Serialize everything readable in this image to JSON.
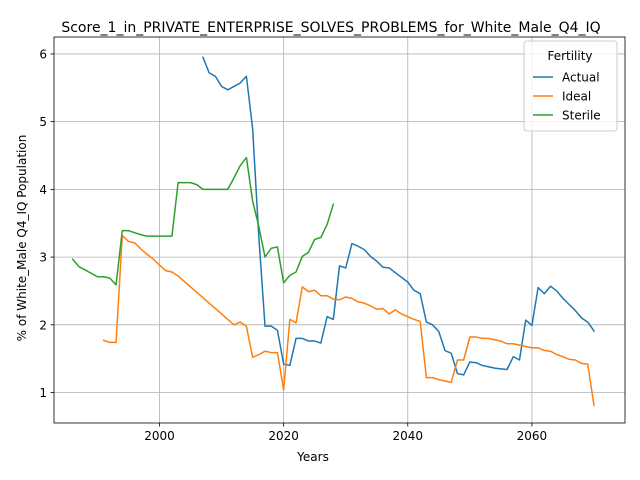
{
  "chart_data": {
    "type": "line",
    "title": "Score_1_in_PRIVATE_ENTERPRISE_SOLVES_PROBLEMS_for_White_Male_Q4_IQ",
    "xlabel": "Years",
    "ylabel": "% of White_Male Q4_IQ Population",
    "xlim": [
      1983,
      2075
    ],
    "ylim": [
      0.55,
      6.25
    ],
    "xticks": [
      2000,
      2020,
      2040,
      2060
    ],
    "yticks": [
      1,
      2,
      3,
      4,
      5,
      6
    ],
    "grid": true,
    "legend": {
      "title": "Fertility",
      "placement": "top-right"
    },
    "series": [
      {
        "name": "Actual",
        "color": "#1f77b4",
        "points": [
          [
            2007,
            5.95
          ],
          [
            2008,
            5.72
          ],
          [
            2009,
            5.67
          ],
          [
            2010,
            5.52
          ],
          [
            2011,
            5.47
          ],
          [
            2012,
            5.52
          ],
          [
            2013,
            5.57
          ],
          [
            2014,
            5.67
          ],
          [
            2015,
            4.9
          ],
          [
            2016,
            3.3
          ],
          [
            2017,
            1.98
          ],
          [
            2018,
            1.98
          ],
          [
            2019,
            1.92
          ],
          [
            2020,
            1.42
          ],
          [
            2021,
            1.4
          ],
          [
            2022,
            1.8
          ],
          [
            2023,
            1.8
          ],
          [
            2024,
            1.76
          ],
          [
            2025,
            1.76
          ],
          [
            2026,
            1.73
          ],
          [
            2027,
            2.12
          ],
          [
            2028,
            2.08
          ],
          [
            2029,
            2.87
          ],
          [
            2030,
            2.84
          ],
          [
            2031,
            3.2
          ],
          [
            2032,
            3.16
          ],
          [
            2033,
            3.11
          ],
          [
            2034,
            3.01
          ],
          [
            2035,
            2.94
          ],
          [
            2036,
            2.85
          ],
          [
            2037,
            2.84
          ],
          [
            2038,
            2.77
          ],
          [
            2039,
            2.7
          ],
          [
            2040,
            2.63
          ],
          [
            2041,
            2.51
          ],
          [
            2042,
            2.46
          ],
          [
            2043,
            2.04
          ],
          [
            2044,
            2.0
          ],
          [
            2045,
            1.9
          ],
          [
            2046,
            1.62
          ],
          [
            2047,
            1.58
          ],
          [
            2048,
            1.28
          ],
          [
            2049,
            1.26
          ],
          [
            2050,
            1.45
          ],
          [
            2051,
            1.44
          ],
          [
            2052,
            1.4
          ],
          [
            2053,
            1.38
          ],
          [
            2054,
            1.36
          ],
          [
            2055,
            1.35
          ],
          [
            2056,
            1.34
          ],
          [
            2057,
            1.53
          ],
          [
            2058,
            1.48
          ],
          [
            2059,
            2.07
          ],
          [
            2060,
            1.99
          ],
          [
            2061,
            2.55
          ],
          [
            2062,
            2.46
          ],
          [
            2063,
            2.57
          ],
          [
            2064,
            2.5
          ],
          [
            2065,
            2.39
          ],
          [
            2066,
            2.3
          ],
          [
            2067,
            2.21
          ],
          [
            2068,
            2.1
          ],
          [
            2069,
            2.04
          ],
          [
            2070,
            1.91
          ]
        ]
      },
      {
        "name": "Ideal",
        "color": "#ff7f0e",
        "points": [
          [
            1991,
            1.77
          ],
          [
            1992,
            1.74
          ],
          [
            1993,
            1.74
          ],
          [
            1994,
            3.32
          ],
          [
            1995,
            3.23
          ],
          [
            1996,
            3.21
          ],
          [
            1997,
            3.12
          ],
          [
            1998,
            3.04
          ],
          [
            1999,
            2.97
          ],
          [
            2000,
            2.88
          ],
          [
            2001,
            2.8
          ],
          [
            2002,
            2.78
          ],
          [
            2003,
            2.72
          ],
          [
            2004,
            2.64
          ],
          [
            2005,
            2.56
          ],
          [
            2006,
            2.48
          ],
          [
            2007,
            2.4
          ],
          [
            2008,
            2.32
          ],
          [
            2009,
            2.24
          ],
          [
            2010,
            2.16
          ],
          [
            2011,
            2.08
          ],
          [
            2012,
            2.0
          ],
          [
            2013,
            2.04
          ],
          [
            2014,
            1.98
          ],
          [
            2015,
            1.52
          ],
          [
            2016,
            1.56
          ],
          [
            2017,
            1.61
          ],
          [
            2018,
            1.59
          ],
          [
            2019,
            1.59
          ],
          [
            2020,
            1.04
          ],
          [
            2021,
            2.08
          ],
          [
            2022,
            2.03
          ],
          [
            2023,
            2.56
          ],
          [
            2024,
            2.49
          ],
          [
            2025,
            2.51
          ],
          [
            2026,
            2.43
          ],
          [
            2027,
            2.43
          ],
          [
            2028,
            2.38
          ],
          [
            2029,
            2.37
          ],
          [
            2030,
            2.41
          ],
          [
            2031,
            2.39
          ],
          [
            2032,
            2.34
          ],
          [
            2033,
            2.32
          ],
          [
            2034,
            2.28
          ],
          [
            2035,
            2.23
          ],
          [
            2036,
            2.24
          ],
          [
            2037,
            2.16
          ],
          [
            2038,
            2.22
          ],
          [
            2039,
            2.16
          ],
          [
            2040,
            2.12
          ],
          [
            2041,
            2.08
          ],
          [
            2042,
            2.05
          ],
          [
            2043,
            1.22
          ],
          [
            2044,
            1.22
          ],
          [
            2045,
            1.19
          ],
          [
            2046,
            1.17
          ],
          [
            2047,
            1.15
          ],
          [
            2048,
            1.48
          ],
          [
            2049,
            1.48
          ],
          [
            2050,
            1.82
          ],
          [
            2051,
            1.82
          ],
          [
            2052,
            1.8
          ],
          [
            2053,
            1.8
          ],
          [
            2054,
            1.78
          ],
          [
            2055,
            1.76
          ],
          [
            2056,
            1.72
          ],
          [
            2057,
            1.72
          ],
          [
            2058,
            1.7
          ],
          [
            2059,
            1.68
          ],
          [
            2060,
            1.66
          ],
          [
            2061,
            1.66
          ],
          [
            2062,
            1.62
          ],
          [
            2063,
            1.61
          ],
          [
            2064,
            1.56
          ],
          [
            2065,
            1.53
          ],
          [
            2066,
            1.49
          ],
          [
            2067,
            1.48
          ],
          [
            2068,
            1.43
          ],
          [
            2069,
            1.42
          ],
          [
            2070,
            0.81
          ]
        ]
      },
      {
        "name": "Sterile",
        "color": "#2ca02c",
        "points": [
          [
            1986,
            2.97
          ],
          [
            1987,
            2.86
          ],
          [
            1988,
            2.81
          ],
          [
            1989,
            2.76
          ],
          [
            1990,
            2.71
          ],
          [
            1991,
            2.71
          ],
          [
            1992,
            2.69
          ],
          [
            1993,
            2.59
          ],
          [
            1994,
            3.39
          ],
          [
            1995,
            3.39
          ],
          [
            1996,
            3.36
          ],
          [
            1997,
            3.33
          ],
          [
            1998,
            3.31
          ],
          [
            1999,
            3.31
          ],
          [
            2000,
            3.31
          ],
          [
            2001,
            3.31
          ],
          [
            2002,
            3.31
          ],
          [
            2003,
            4.1
          ],
          [
            2004,
            4.1
          ],
          [
            2005,
            4.1
          ],
          [
            2006,
            4.07
          ],
          [
            2007,
            4.0
          ],
          [
            2008,
            4.0
          ],
          [
            2009,
            4.0
          ],
          [
            2010,
            4.0
          ],
          [
            2011,
            4.0
          ],
          [
            2012,
            4.17
          ],
          [
            2013,
            4.35
          ],
          [
            2014,
            4.47
          ],
          [
            2015,
            3.83
          ],
          [
            2016,
            3.45
          ],
          [
            2017,
            3.0
          ],
          [
            2018,
            3.13
          ],
          [
            2019,
            3.15
          ],
          [
            2020,
            2.62
          ],
          [
            2021,
            2.73
          ],
          [
            2022,
            2.78
          ],
          [
            2023,
            3.01
          ],
          [
            2024,
            3.07
          ],
          [
            2025,
            3.26
          ],
          [
            2026,
            3.29
          ],
          [
            2027,
            3.48
          ],
          [
            2028,
            3.78
          ]
        ]
      }
    ]
  }
}
